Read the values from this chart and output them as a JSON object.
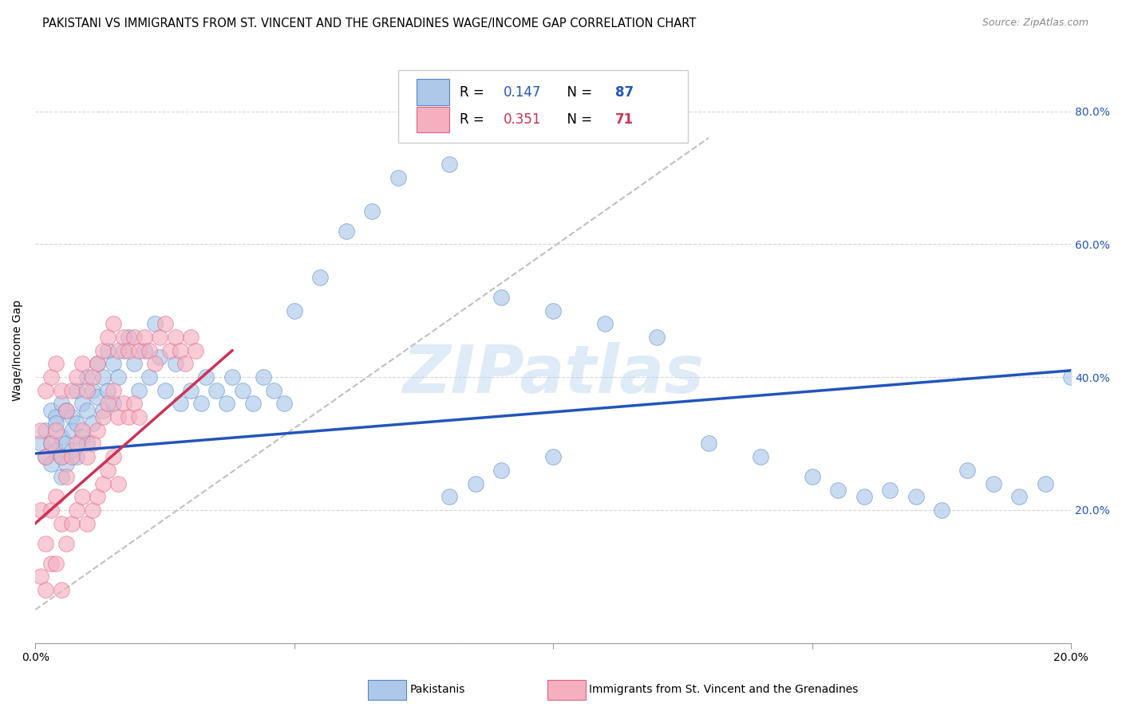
{
  "title": "PAKISTANI VS IMMIGRANTS FROM ST. VINCENT AND THE GRENADINES WAGE/INCOME GAP CORRELATION CHART",
  "source": "Source: ZipAtlas.com",
  "ylabel": "Wage/Income Gap",
  "watermark": "ZIPatlas",
  "xlim": [
    0.0,
    0.2
  ],
  "ylim": [
    0.0,
    0.88
  ],
  "xticks": [
    0.0,
    0.05,
    0.1,
    0.15,
    0.2
  ],
  "xtick_labels": [
    "0.0%",
    "",
    "",
    "",
    "20.0%"
  ],
  "ytick_right_labels": [
    "",
    "20.0%",
    "40.0%",
    "60.0%",
    "80.0%"
  ],
  "ytick_vals": [
    0.0,
    0.2,
    0.4,
    0.6,
    0.8
  ],
  "blue_R": 0.147,
  "blue_N": 87,
  "pink_R": 0.351,
  "pink_N": 71,
  "blue_fill": "#adc8e8",
  "blue_edge": "#5585c8",
  "pink_fill": "#f5b0c0",
  "pink_edge": "#e06080",
  "blue_line_color": "#2255bb",
  "pink_line_color": "#cc3355",
  "dashed_line_color": "#c0c0c0",
  "title_fontsize": 10.5,
  "axis_label_fontsize": 10,
  "tick_fontsize": 10,
  "legend_fontsize": 12,
  "blue_scatter_x": [
    0.001,
    0.002,
    0.002,
    0.003,
    0.003,
    0.003,
    0.004,
    0.004,
    0.004,
    0.005,
    0.005,
    0.005,
    0.005,
    0.006,
    0.006,
    0.006,
    0.007,
    0.007,
    0.007,
    0.008,
    0.008,
    0.008,
    0.009,
    0.009,
    0.01,
    0.01,
    0.01,
    0.011,
    0.011,
    0.012,
    0.012,
    0.013,
    0.013,
    0.014,
    0.014,
    0.015,
    0.015,
    0.016,
    0.017,
    0.018,
    0.019,
    0.02,
    0.021,
    0.022,
    0.023,
    0.024,
    0.025,
    0.027,
    0.028,
    0.03,
    0.032,
    0.033,
    0.035,
    0.037,
    0.038,
    0.04,
    0.042,
    0.044,
    0.046,
    0.048,
    0.05,
    0.055,
    0.06,
    0.065,
    0.07,
    0.08,
    0.09,
    0.1,
    0.11,
    0.12,
    0.13,
    0.14,
    0.15,
    0.155,
    0.16,
    0.165,
    0.17,
    0.175,
    0.18,
    0.185,
    0.19,
    0.195,
    0.2,
    0.1,
    0.09,
    0.085,
    0.08
  ],
  "blue_scatter_y": [
    0.3,
    0.32,
    0.28,
    0.35,
    0.3,
    0.27,
    0.34,
    0.29,
    0.33,
    0.36,
    0.31,
    0.28,
    0.25,
    0.35,
    0.3,
    0.27,
    0.34,
    0.29,
    0.32,
    0.38,
    0.33,
    0.28,
    0.36,
    0.31,
    0.4,
    0.35,
    0.3,
    0.38,
    0.33,
    0.42,
    0.37,
    0.4,
    0.35,
    0.44,
    0.38,
    0.42,
    0.36,
    0.4,
    0.44,
    0.46,
    0.42,
    0.38,
    0.44,
    0.4,
    0.48,
    0.43,
    0.38,
    0.42,
    0.36,
    0.38,
    0.36,
    0.4,
    0.38,
    0.36,
    0.4,
    0.38,
    0.36,
    0.4,
    0.38,
    0.36,
    0.5,
    0.55,
    0.62,
    0.65,
    0.7,
    0.72,
    0.52,
    0.5,
    0.48,
    0.46,
    0.3,
    0.28,
    0.25,
    0.23,
    0.22,
    0.23,
    0.22,
    0.2,
    0.26,
    0.24,
    0.22,
    0.24,
    0.4,
    0.28,
    0.26,
    0.24,
    0.22
  ],
  "pink_scatter_x": [
    0.001,
    0.001,
    0.001,
    0.002,
    0.002,
    0.002,
    0.002,
    0.003,
    0.003,
    0.003,
    0.003,
    0.004,
    0.004,
    0.004,
    0.004,
    0.005,
    0.005,
    0.005,
    0.005,
    0.006,
    0.006,
    0.006,
    0.007,
    0.007,
    0.007,
    0.008,
    0.008,
    0.008,
    0.009,
    0.009,
    0.009,
    0.01,
    0.01,
    0.01,
    0.011,
    0.011,
    0.011,
    0.012,
    0.012,
    0.012,
    0.013,
    0.013,
    0.013,
    0.014,
    0.014,
    0.014,
    0.015,
    0.015,
    0.015,
    0.016,
    0.016,
    0.016,
    0.017,
    0.017,
    0.018,
    0.018,
    0.019,
    0.019,
    0.02,
    0.02,
    0.021,
    0.022,
    0.023,
    0.024,
    0.025,
    0.026,
    0.027,
    0.028,
    0.029,
    0.03,
    0.031
  ],
  "pink_scatter_y": [
    0.32,
    0.2,
    0.1,
    0.38,
    0.28,
    0.15,
    0.08,
    0.4,
    0.3,
    0.2,
    0.12,
    0.42,
    0.32,
    0.22,
    0.12,
    0.38,
    0.28,
    0.18,
    0.08,
    0.35,
    0.25,
    0.15,
    0.38,
    0.28,
    0.18,
    0.4,
    0.3,
    0.2,
    0.42,
    0.32,
    0.22,
    0.38,
    0.28,
    0.18,
    0.4,
    0.3,
    0.2,
    0.42,
    0.32,
    0.22,
    0.44,
    0.34,
    0.24,
    0.46,
    0.36,
    0.26,
    0.48,
    0.38,
    0.28,
    0.44,
    0.34,
    0.24,
    0.46,
    0.36,
    0.44,
    0.34,
    0.46,
    0.36,
    0.44,
    0.34,
    0.46,
    0.44,
    0.42,
    0.46,
    0.48,
    0.44,
    0.46,
    0.44,
    0.42,
    0.46,
    0.44
  ],
  "blue_trend_x": [
    0.0,
    0.2
  ],
  "blue_trend_y": [
    0.285,
    0.41
  ],
  "pink_trend_x": [
    0.0,
    0.038
  ],
  "pink_trend_y": [
    0.18,
    0.44
  ],
  "dashed_trend_x": [
    0.0,
    0.13
  ],
  "dashed_trend_y": [
    0.05,
    0.76
  ]
}
